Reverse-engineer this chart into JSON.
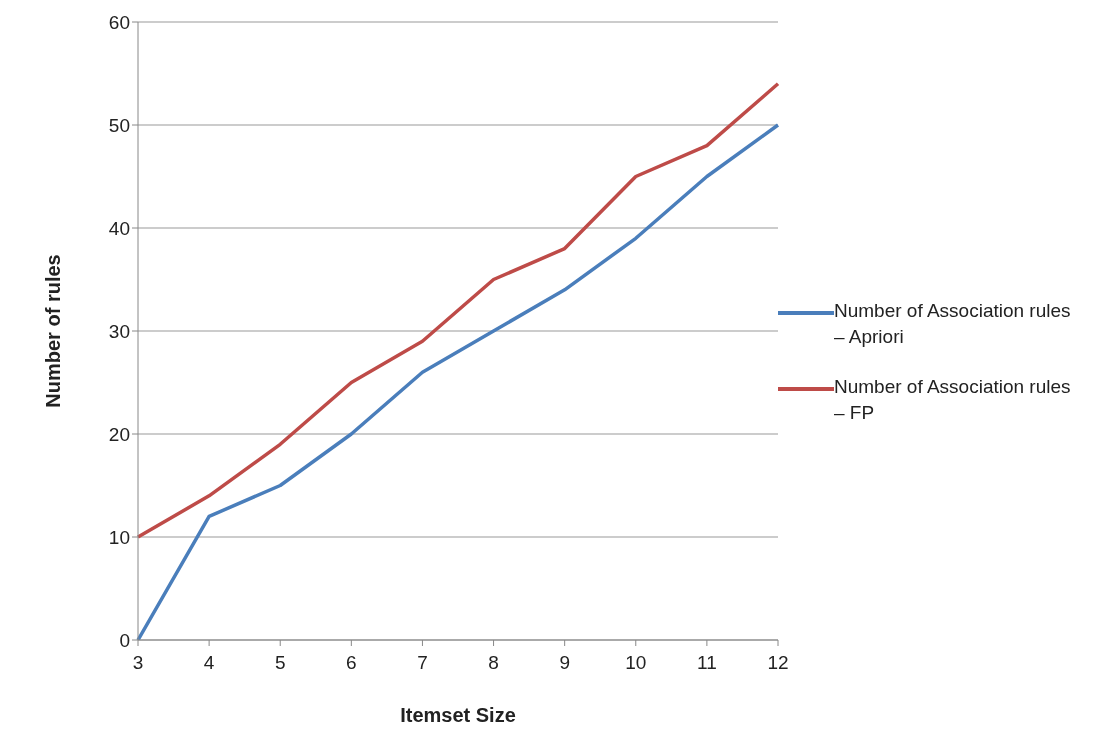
{
  "chart_data": {
    "type": "line",
    "xlabel": "Itemset Size",
    "ylabel": "Number of rules",
    "categories": [
      "3",
      "4",
      "5",
      "6",
      "7",
      "8",
      "9",
      "10",
      "11",
      "12"
    ],
    "series": [
      {
        "name": "Number of Association rules – Apriori",
        "color": "#4a7ebb",
        "values": [
          0,
          12,
          15,
          20,
          26,
          30,
          34,
          39,
          45,
          50
        ]
      },
      {
        "name": "Number of Association rules – FP",
        "color": "#be4b48",
        "values": [
          10,
          14,
          19,
          25,
          29,
          35,
          38,
          45,
          48,
          54
        ]
      }
    ],
    "ylim": [
      0,
      60
    ],
    "yticks": [
      0,
      10,
      20,
      30,
      40,
      50,
      60
    ],
    "grid": "y",
    "legend": "right",
    "marker": "none",
    "line_style": "solid"
  }
}
